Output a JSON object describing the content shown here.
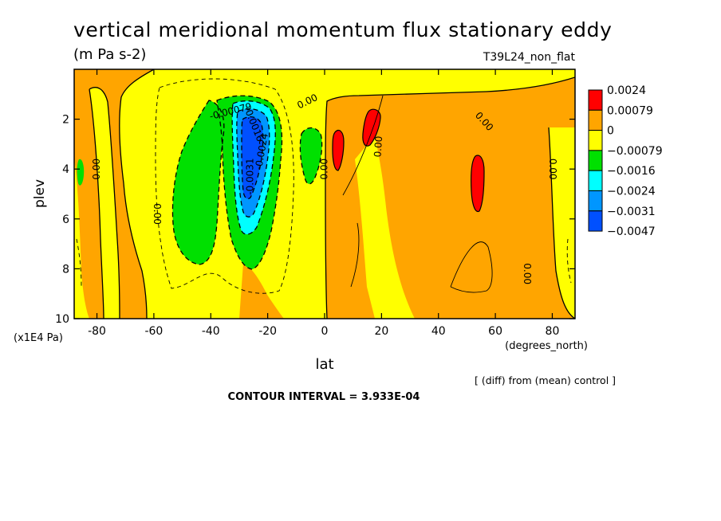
{
  "chart_data": {
    "type": "heatmap",
    "title": "vertical meridional momentum flux stationary eddy",
    "units": "(m Pa s-2)",
    "run_label": "T39L24_non_flat",
    "xlabel": "lat",
    "x_units": "(degrees_north)",
    "ylabel": "plev",
    "y_units": "(x1E4 Pa)",
    "xlim": [
      -88,
      88
    ],
    "ylim": [
      10,
      0
    ],
    "x_ticks": [
      -80,
      -60,
      -40,
      -20,
      0,
      20,
      40,
      60,
      80
    ],
    "x_tick_labels": [
      "-80",
      "-60",
      "-40",
      "-20",
      "0",
      "20",
      "40",
      "60",
      "80"
    ],
    "y_ticks": [
      2,
      4,
      6,
      8,
      10
    ],
    "y_tick_labels": [
      "2",
      "4",
      "6",
      "8",
      "10"
    ],
    "diff_note": "[ (diff) from (mean) control ]",
    "contour_interval": "CONTOUR INTERVAL = 3.933E-04",
    "colorbar": [
      {
        "label": "0.0024",
        "color": "#ff0000"
      },
      {
        "label": "0.00079",
        "color": "#ffa500"
      },
      {
        "label": "0",
        "color": "#ffff00"
      },
      {
        "label": "−0.00079",
        "color": "#00e000"
      },
      {
        "label": "−0.0016",
        "color": "#00ffff"
      },
      {
        "label": "−0.0024",
        "color": "#0096ff"
      },
      {
        "label": "−0.0031",
        "color": "#0050ff"
      },
      {
        "label": "−0.0047",
        "color": null
      }
    ],
    "contour_labels": [
      {
        "text": "0.00",
        "lat": -80,
        "plev": 4.0,
        "rotate": -90
      },
      {
        "text": "0.00",
        "lat": -59,
        "plev": 5.8,
        "rotate": 90
      },
      {
        "text": "-0.00079",
        "lat": -33,
        "plev": 1.7,
        "rotate": -14
      },
      {
        "text": "-0.0016",
        "lat": -25,
        "plev": 2.2,
        "rotate": 68
      },
      {
        "text": "-0.0024",
        "lat": -22,
        "plev": 3.3,
        "rotate": -80
      },
      {
        "text": "-0.0031",
        "lat": -26,
        "plev": 4.3,
        "rotate": -90
      },
      {
        "text": "0.00",
        "lat": -6,
        "plev": 1.3,
        "rotate": -26
      },
      {
        "text": "0.00",
        "lat": 0,
        "plev": 4.0,
        "rotate": -90
      },
      {
        "text": "0.00",
        "lat": 19,
        "plev": 3.1,
        "rotate": -86
      },
      {
        "text": "0.00",
        "lat": 56,
        "plev": 2.1,
        "rotate": 48
      },
      {
        "text": "0.00",
        "lat": 80,
        "plev": 4.0,
        "rotate": 90
      },
      {
        "text": "0.00",
        "lat": 71,
        "plev": 8.2,
        "rotate": 90
      }
    ]
  }
}
